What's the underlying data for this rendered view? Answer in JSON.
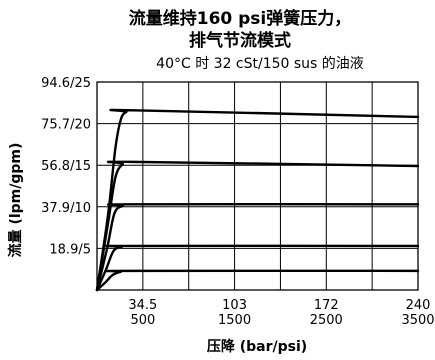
{
  "chart_data": {
    "type": "line",
    "title_lines": [
      "流量维持160 psi弹簧压力，",
      "排气节流模式"
    ],
    "subtitle": "40°C 时 32 cSt/150 sus 的油液",
    "xlabel": "压降 (bar/psi)",
    "ylabel": "流量 (lpm/gpm)",
    "xlim": [
      0,
      3500
    ],
    "ylim": [
      0,
      24
    ],
    "x_ticks": [
      {
        "value": 500,
        "bar": "34.5",
        "psi": "500"
      },
      {
        "value": 1500,
        "bar": "103",
        "psi": "1500"
      },
      {
        "value": 2500,
        "bar": "172",
        "psi": "2500"
      },
      {
        "value": 3500,
        "bar": "240",
        "psi": "3500"
      }
    ],
    "x_grid": [
      500,
      1000,
      1500,
      2000,
      2500,
      3000
    ],
    "y_ticks": [
      {
        "value": 5,
        "label": "18.9/5"
      },
      {
        "value": 10,
        "label": "37.9/10"
      },
      {
        "value": 15,
        "label": "56.8/15"
      },
      {
        "value": 20,
        "label": "75.7/20"
      },
      {
        "value": 25,
        "label": "94.6/25"
      }
    ],
    "y_grid": [
      5,
      10,
      15,
      20
    ],
    "series": [
      {
        "values": [
          [
            0,
            0
          ],
          [
            120,
            9
          ],
          [
            200,
            17
          ],
          [
            260,
            20.5
          ],
          [
            320,
            21.4
          ],
          [
            400,
            21.6
          ],
          [
            3500,
            20.8
          ]
        ]
      },
      {
        "values": [
          [
            0,
            0
          ],
          [
            120,
            8
          ],
          [
            200,
            13.5
          ],
          [
            280,
            15.1
          ],
          [
            380,
            15.4
          ],
          [
            3500,
            14.9
          ]
        ]
      },
      {
        "values": [
          [
            0,
            0
          ],
          [
            110,
            5
          ],
          [
            190,
            9.2
          ],
          [
            280,
            10.1
          ],
          [
            380,
            10.3
          ],
          [
            3500,
            10.3
          ]
        ]
      },
      {
        "values": [
          [
            0,
            0
          ],
          [
            100,
            2.5
          ],
          [
            180,
            4.7
          ],
          [
            270,
            5.2
          ],
          [
            360,
            5.3
          ],
          [
            3500,
            5.3
          ]
        ]
      },
      {
        "values": [
          [
            0,
            0
          ],
          [
            90,
            0.9
          ],
          [
            170,
            1.8
          ],
          [
            260,
            2.2
          ],
          [
            350,
            2.3
          ],
          [
            3500,
            2.3
          ]
        ]
      }
    ]
  }
}
